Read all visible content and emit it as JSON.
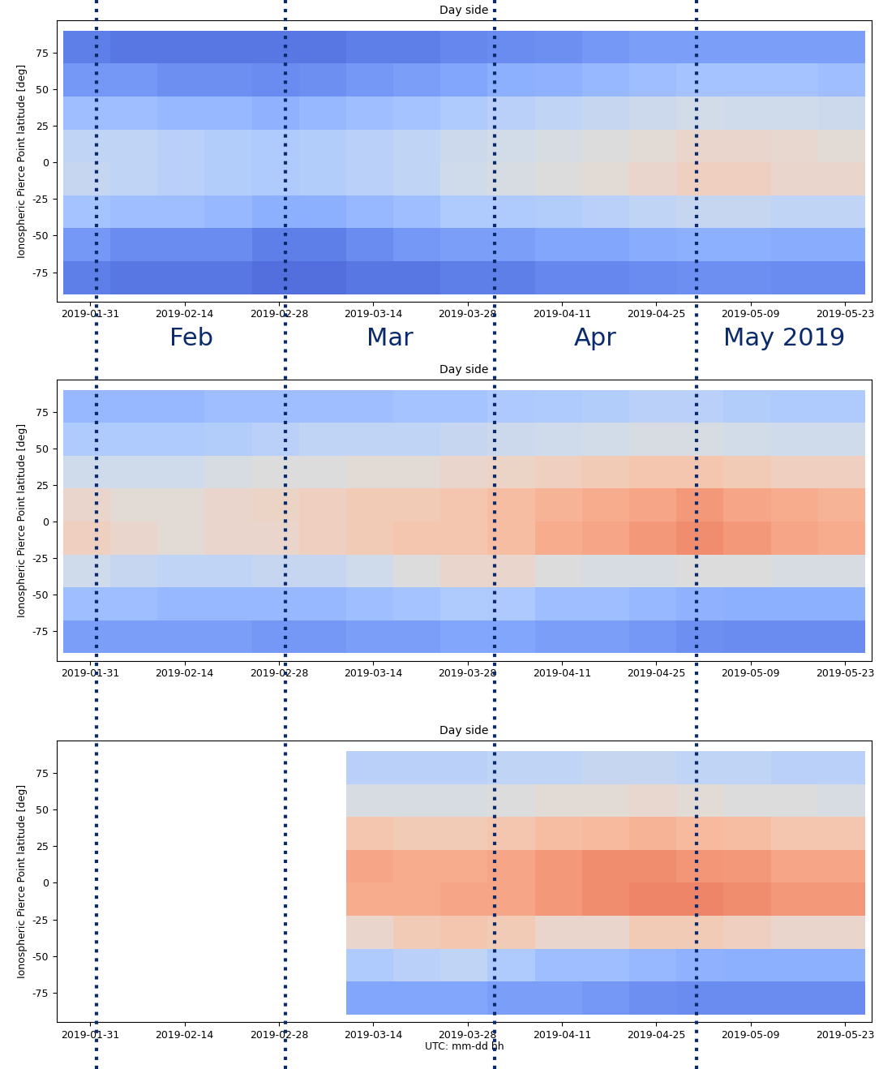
{
  "chart_data": [
    {
      "type": "heatmap",
      "title": "Day side",
      "ylabel": "Ionospheric Pierce Point latitude [deg]",
      "color": "coolwarm",
      "cell_range": [
        0,
        1
      ],
      "x": [
        "2019-01-27",
        "2019-02-03",
        "2019-02-10",
        "2019-02-17",
        "2019-02-24",
        "2019-03-03",
        "2019-03-10",
        "2019-03-17",
        "2019-03-24",
        "2019-03-31",
        "2019-04-07",
        "2019-04-14",
        "2019-04-21",
        "2019-04-28",
        "2019-05-05",
        "2019-05-12",
        "2019-05-19",
        "2019-05-26"
      ],
      "y": [
        -90,
        -67.5,
        -45,
        -22.5,
        0,
        22.5,
        45,
        67.5,
        90
      ],
      "cells": [
        [
          0.12,
          0.1,
          0.1,
          0.1,
          0.08,
          0.08,
          0.1,
          0.1,
          0.12,
          0.12,
          0.14,
          0.14,
          0.15,
          0.16,
          0.16,
          0.15,
          0.15
        ],
        [
          0.18,
          0.15,
          0.15,
          0.15,
          0.12,
          0.12,
          0.15,
          0.18,
          0.2,
          0.2,
          0.22,
          0.22,
          0.24,
          0.25,
          0.25,
          0.24,
          0.24
        ],
        [
          0.32,
          0.3,
          0.3,
          0.28,
          0.25,
          0.25,
          0.28,
          0.3,
          0.35,
          0.35,
          0.36,
          0.38,
          0.4,
          0.42,
          0.42,
          0.4,
          0.4
        ],
        [
          0.42,
          0.4,
          0.38,
          0.36,
          0.35,
          0.36,
          0.38,
          0.4,
          0.45,
          0.48,
          0.5,
          0.52,
          0.55,
          0.58,
          0.58,
          0.55,
          0.55
        ],
        [
          0.4,
          0.4,
          0.38,
          0.36,
          0.35,
          0.36,
          0.38,
          0.4,
          0.44,
          0.46,
          0.48,
          0.5,
          0.52,
          0.55,
          0.55,
          0.54,
          0.52
        ],
        [
          0.3,
          0.3,
          0.28,
          0.28,
          0.26,
          0.28,
          0.3,
          0.32,
          0.35,
          0.38,
          0.4,
          0.42,
          0.44,
          0.46,
          0.45,
          0.45,
          0.44
        ],
        [
          0.18,
          0.18,
          0.16,
          0.16,
          0.15,
          0.16,
          0.18,
          0.2,
          0.22,
          0.25,
          0.26,
          0.28,
          0.3,
          0.32,
          0.32,
          0.32,
          0.3
        ],
        [
          0.12,
          0.1,
          0.1,
          0.1,
          0.1,
          0.1,
          0.12,
          0.12,
          0.14,
          0.15,
          0.16,
          0.18,
          0.2,
          0.2,
          0.2,
          0.2,
          0.2
        ]
      ],
      "xlim": [
        "2019-01-26",
        "2019-05-27"
      ],
      "xticks": [
        "2019-01-31",
        "2019-02-14",
        "2019-02-28",
        "2019-03-14",
        "2019-03-28",
        "2019-04-11",
        "2019-04-25",
        "2019-05-09",
        "2019-05-23"
      ],
      "ylim": [
        -95,
        97
      ],
      "yticks": [
        -75,
        -50,
        -25,
        0,
        25,
        50,
        75
      ]
    },
    {
      "type": "heatmap",
      "title": "Day side",
      "ylabel": "Ionospheric Pierce Point latitude [deg]",
      "color": "coolwarm",
      "cell_range": [
        0,
        1
      ],
      "x": [
        "2019-01-27",
        "2019-02-03",
        "2019-02-10",
        "2019-02-17",
        "2019-02-24",
        "2019-03-03",
        "2019-03-10",
        "2019-03-17",
        "2019-03-24",
        "2019-03-31",
        "2019-04-07",
        "2019-04-14",
        "2019-04-21",
        "2019-04-28",
        "2019-05-05",
        "2019-05-12",
        "2019-05-19",
        "2019-05-26"
      ],
      "y": [
        -90,
        -67.5,
        -45,
        -22.5,
        0,
        22.5,
        45,
        67.5,
        90
      ],
      "cells": [
        [
          0.2,
          0.2,
          0.2,
          0.2,
          0.18,
          0.18,
          0.2,
          0.2,
          0.22,
          0.22,
          0.2,
          0.2,
          0.18,
          0.16,
          0.15,
          0.15,
          0.15
        ],
        [
          0.3,
          0.3,
          0.28,
          0.28,
          0.28,
          0.28,
          0.3,
          0.32,
          0.35,
          0.34,
          0.3,
          0.3,
          0.28,
          0.26,
          0.25,
          0.25,
          0.25
        ],
        [
          0.45,
          0.42,
          0.4,
          0.4,
          0.42,
          0.42,
          0.45,
          0.5,
          0.55,
          0.55,
          0.5,
          0.48,
          0.48,
          0.5,
          0.5,
          0.48,
          0.48
        ],
        [
          0.58,
          0.55,
          0.52,
          0.55,
          0.55,
          0.58,
          0.6,
          0.62,
          0.62,
          0.65,
          0.7,
          0.72,
          0.75,
          0.78,
          0.75,
          0.72,
          0.7
        ],
        [
          0.55,
          0.52,
          0.52,
          0.55,
          0.56,
          0.58,
          0.6,
          0.6,
          0.62,
          0.65,
          0.68,
          0.7,
          0.72,
          0.75,
          0.72,
          0.7,
          0.68
        ],
        [
          0.45,
          0.45,
          0.45,
          0.48,
          0.5,
          0.5,
          0.52,
          0.52,
          0.55,
          0.56,
          0.58,
          0.6,
          0.62,
          0.62,
          0.6,
          0.58,
          0.58
        ],
        [
          0.35,
          0.35,
          0.35,
          0.36,
          0.38,
          0.4,
          0.4,
          0.4,
          0.42,
          0.44,
          0.45,
          0.46,
          0.48,
          0.48,
          0.46,
          0.45,
          0.45
        ],
        [
          0.28,
          0.28,
          0.28,
          0.3,
          0.3,
          0.3,
          0.3,
          0.32,
          0.32,
          0.34,
          0.35,
          0.36,
          0.38,
          0.38,
          0.36,
          0.35,
          0.35
        ]
      ],
      "xlim": [
        "2019-01-26",
        "2019-05-27"
      ],
      "xticks": [
        "2019-01-31",
        "2019-02-14",
        "2019-02-28",
        "2019-03-14",
        "2019-03-28",
        "2019-04-11",
        "2019-04-25",
        "2019-05-09",
        "2019-05-23"
      ],
      "ylim": [
        -95,
        97
      ],
      "yticks": [
        -75,
        -50,
        -25,
        0,
        25,
        50,
        75
      ]
    },
    {
      "type": "heatmap",
      "title": "Day side",
      "ylabel": "Ionospheric Pierce Point latitude [deg]",
      "xlabel": "UTC: mm-dd hh",
      "color": "coolwarm",
      "cell_range": [
        0,
        1
      ],
      "x": [
        "2019-01-27",
        "2019-02-03",
        "2019-02-10",
        "2019-02-17",
        "2019-02-24",
        "2019-03-03",
        "2019-03-10",
        "2019-03-17",
        "2019-03-24",
        "2019-03-31",
        "2019-04-07",
        "2019-04-14",
        "2019-04-21",
        "2019-04-28",
        "2019-05-05",
        "2019-05-12",
        "2019-05-19",
        "2019-05-26"
      ],
      "y": [
        -90,
        -67.5,
        -45,
        -22.5,
        0,
        22.5,
        45,
        67.5,
        90
      ],
      "cells": [
        [
          null,
          null,
          null,
          null,
          null,
          null,
          0.22,
          0.22,
          0.22,
          0.2,
          0.2,
          0.18,
          0.16,
          0.15,
          0.15,
          0.15,
          0.15
        ],
        [
          null,
          null,
          null,
          null,
          null,
          null,
          0.35,
          0.38,
          0.4,
          0.35,
          0.3,
          0.3,
          0.28,
          0.26,
          0.25,
          0.25,
          0.25
        ],
        [
          null,
          null,
          null,
          null,
          null,
          null,
          0.55,
          0.6,
          0.62,
          0.6,
          0.55,
          0.55,
          0.6,
          0.6,
          0.58,
          0.55,
          0.55
        ],
        [
          null,
          null,
          null,
          null,
          null,
          null,
          0.7,
          0.7,
          0.72,
          0.72,
          0.75,
          0.78,
          0.8,
          0.8,
          0.78,
          0.75,
          0.75
        ],
        [
          null,
          null,
          null,
          null,
          null,
          null,
          0.72,
          0.7,
          0.7,
          0.72,
          0.75,
          0.78,
          0.78,
          0.76,
          0.75,
          0.72,
          0.72
        ],
        [
          null,
          null,
          null,
          null,
          null,
          null,
          0.62,
          0.6,
          0.6,
          0.62,
          0.65,
          0.66,
          0.68,
          0.66,
          0.65,
          0.62,
          0.62
        ],
        [
          null,
          null,
          null,
          null,
          null,
          null,
          0.48,
          0.48,
          0.48,
          0.5,
          0.52,
          0.52,
          0.54,
          0.52,
          0.5,
          0.5,
          0.48
        ],
        [
          null,
          null,
          null,
          null,
          null,
          null,
          0.38,
          0.38,
          0.38,
          0.4,
          0.4,
          0.42,
          0.42,
          0.4,
          0.4,
          0.38,
          0.38
        ]
      ],
      "xlim": [
        "2019-01-26",
        "2019-05-27"
      ],
      "xticks": [
        "2019-01-31",
        "2019-02-14",
        "2019-02-28",
        "2019-03-14",
        "2019-03-28",
        "2019-04-11",
        "2019-04-25",
        "2019-05-09",
        "2019-05-23"
      ],
      "ylim": [
        -95,
        97
      ],
      "yticks": [
        -75,
        -50,
        -25,
        0,
        25,
        50,
        75
      ]
    }
  ],
  "month_boundaries": {
    "x": [
      "2019-02-01",
      "2019-03-01",
      "2019-04-01",
      "2019-05-01"
    ],
    "line_style": "dotted",
    "color": "#0b2a6b"
  },
  "month_labels": {
    "labels": [
      "Feb",
      "Mar",
      "Apr",
      "May 2019"
    ],
    "color": "#0b2a6b"
  }
}
